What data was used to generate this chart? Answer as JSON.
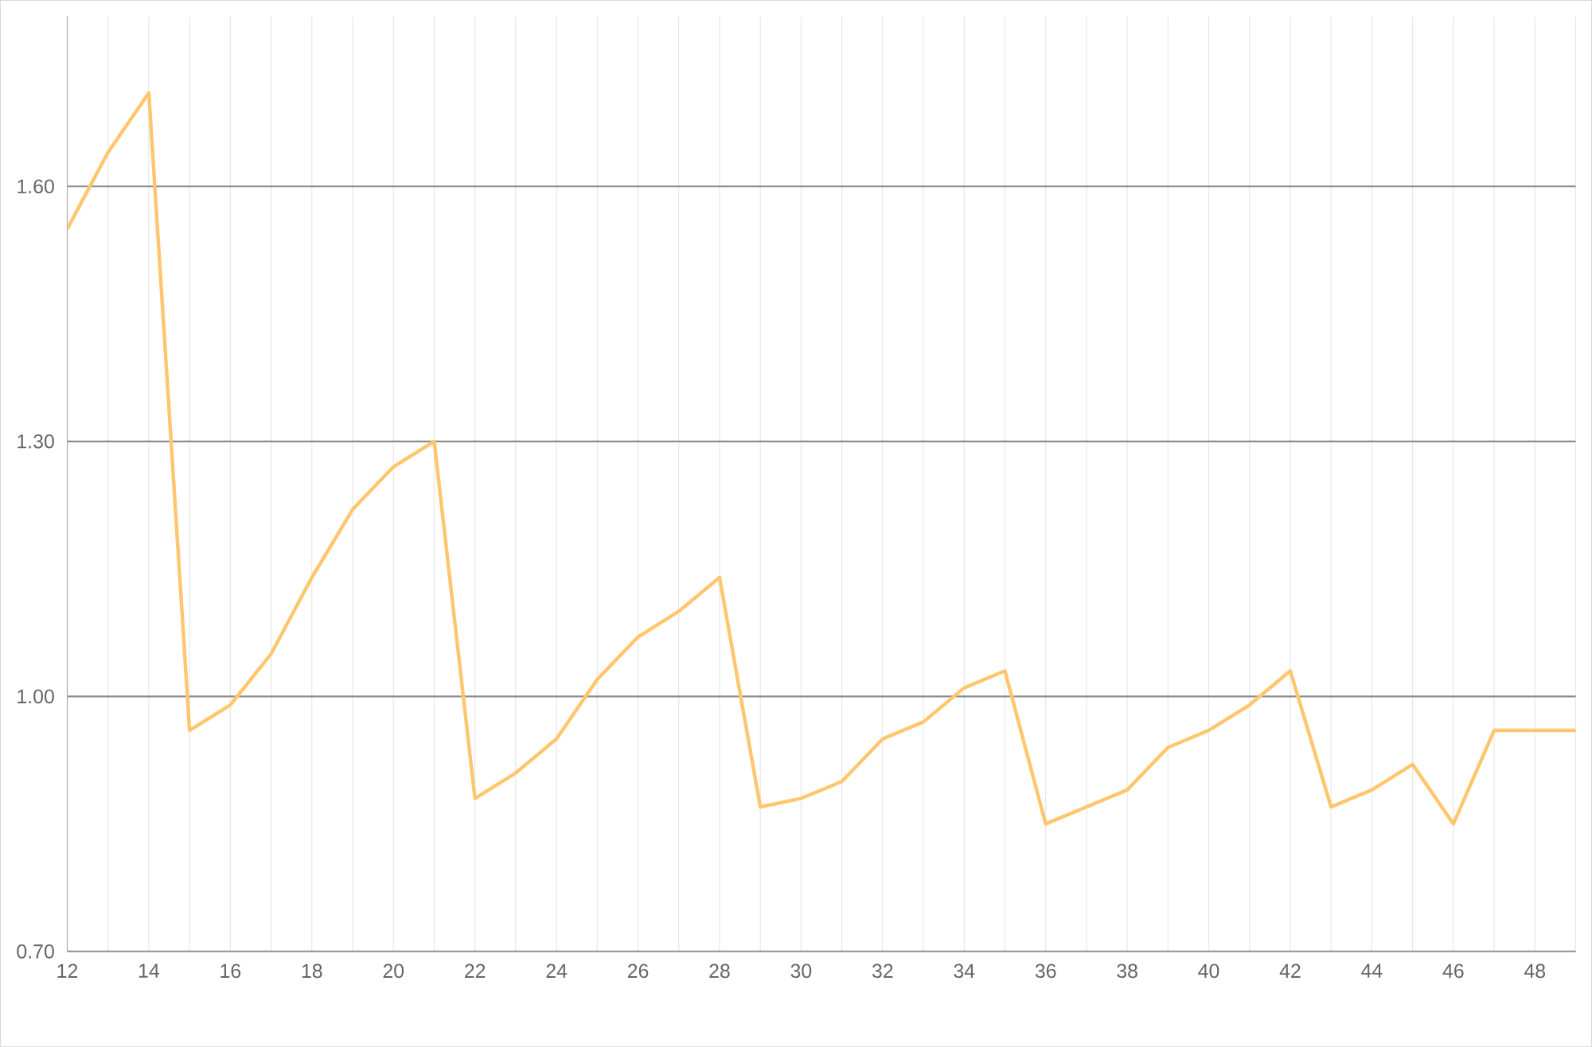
{
  "chart_data": {
    "type": "line",
    "x": [
      12,
      13,
      14,
      15,
      16,
      17,
      18,
      19,
      20,
      21,
      22,
      23,
      24,
      25,
      26,
      27,
      28,
      29,
      30,
      31,
      32,
      33,
      34,
      35,
      36,
      37,
      38,
      39,
      40,
      41,
      42,
      43,
      44,
      45,
      46,
      47,
      48,
      49
    ],
    "series": [
      {
        "color": "#ffc66d",
        "values": [
          1.55,
          1.64,
          1.71,
          0.96,
          0.99,
          1.05,
          1.14,
          1.22,
          1.27,
          1.3,
          0.88,
          0.91,
          0.95,
          1.02,
          1.07,
          1.1,
          1.14,
          0.87,
          0.88,
          0.9,
          0.95,
          0.97,
          1.01,
          1.03,
          0.85,
          0.87,
          0.89,
          0.94,
          0.96,
          0.99,
          1.03,
          0.87,
          0.89,
          0.92,
          0.85,
          0.96,
          0.96,
          0.96
        ]
      }
    ],
    "xlim": [
      12,
      49
    ],
    "xticks": [
      12,
      {
        "value": 13,
        "label": null
      },
      14,
      {
        "value": 15,
        "label": null
      },
      16,
      {
        "value": 17,
        "label": null
      },
      18,
      {
        "value": 19,
        "label": null
      },
      20,
      {
        "value": 21,
        "label": null
      },
      22,
      {
        "value": 23,
        "label": null
      },
      24,
      {
        "value": 25,
        "label": null
      },
      26,
      {
        "value": 27,
        "label": null
      },
      28,
      {
        "value": 29,
        "label": null
      },
      30,
      {
        "value": 31,
        "label": null
      },
      32,
      {
        "value": 33,
        "label": null
      },
      34,
      {
        "value": 35,
        "label": null
      },
      36,
      {
        "value": 37,
        "label": null
      },
      38,
      {
        "value": 39,
        "label": null
      },
      40,
      {
        "value": 41,
        "label": null
      },
      42,
      {
        "value": 43,
        "label": null
      },
      44,
      {
        "value": 45,
        "label": null
      },
      46,
      {
        "value": 47,
        "label": null
      },
      48,
      {
        "value": 49,
        "label": null
      }
    ],
    "ylim": [
      0.7,
      1.8
    ],
    "yticks": [
      {
        "value": 0.7,
        "label": "0.70"
      },
      {
        "value": 1.0,
        "label": "1.00"
      },
      {
        "value": 1.3,
        "label": "1.30"
      },
      {
        "value": 1.6,
        "label": "1.60"
      }
    ],
    "grid": true,
    "marker": "none",
    "line_style": "solid"
  }
}
